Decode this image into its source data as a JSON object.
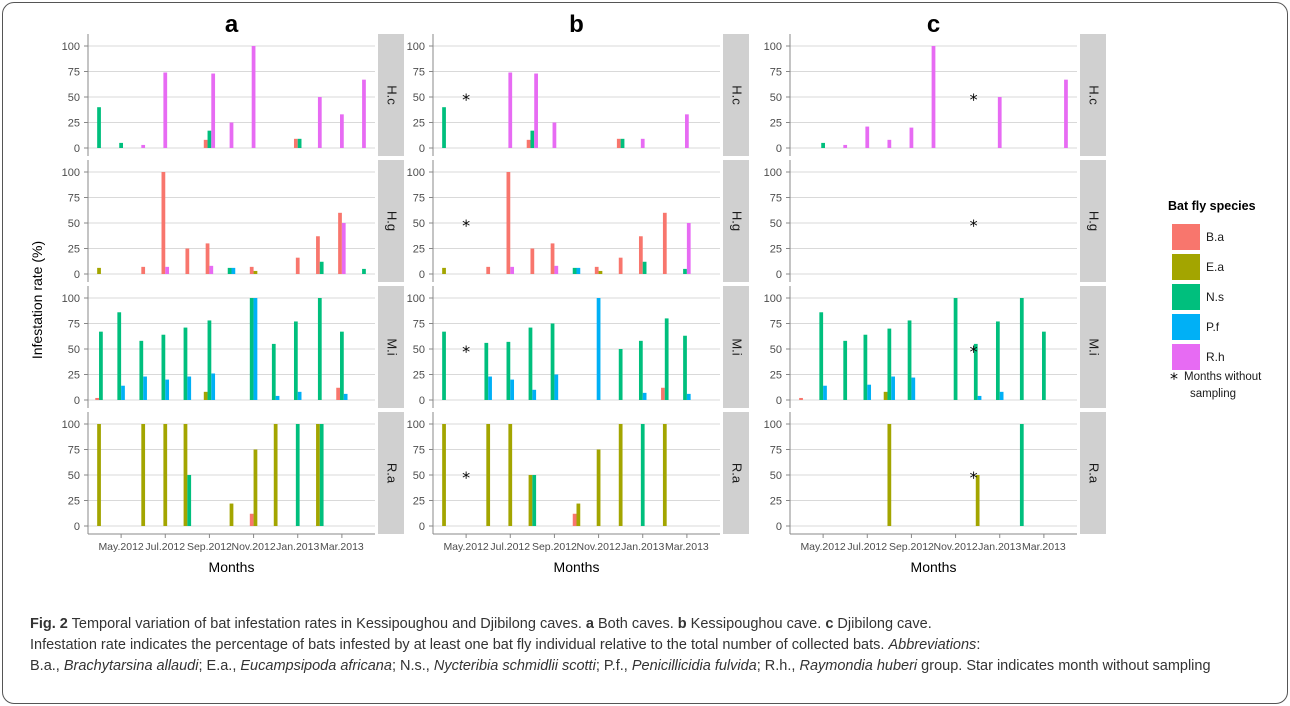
{
  "chart_data": {
    "type": "bar",
    "ylabel": "Infestation rate (%)",
    "xlabel": "Months",
    "months": [
      "2012-04",
      "2012-05",
      "2012-06",
      "2012-07",
      "2012-08",
      "2012-09",
      "2012-10",
      "2012-11",
      "2012-12",
      "2013-01",
      "2013-02",
      "2013-03",
      "2013-04"
    ],
    "month_tick_labels": [
      "May.2012",
      "Jul.2012",
      "Sep.2012",
      "Nov.2012",
      "Jan.2013",
      "Mar.2013"
    ],
    "ylim": [
      0,
      100
    ],
    "yticks": [
      0,
      25,
      50,
      75,
      100
    ],
    "grid": true,
    "facet_rows": [
      "H.c",
      "H.g",
      "M.i",
      "R.a"
    ],
    "series_names": [
      "B.a",
      "E.a",
      "N.s",
      "P.f",
      "R.h"
    ],
    "colors": {
      "B.a": "#F8766D",
      "E.a": "#A3A500",
      "N.s": "#00BF7D",
      "P.f": "#00B0F6",
      "R.h": "#E76BF3"
    },
    "legend": {
      "title": "Bat fly species",
      "position": "right",
      "items": [
        "B.a",
        "E.a",
        "N.s",
        "P.f",
        "R.h"
      ],
      "note_symbol": "*",
      "note_text": [
        "Months without",
        "sampling"
      ]
    },
    "panels": [
      {
        "label": "a",
        "no_sampling_month": null,
        "facets": {
          "H.c": {
            "B.a": [
              0,
              0,
              0,
              0,
              0,
              8,
              0,
              0,
              0,
              9,
              0,
              0,
              0
            ],
            "E.a": [
              0,
              0,
              0,
              0,
              0,
              0,
              0,
              0,
              0,
              0,
              0,
              0,
              0
            ],
            "N.s": [
              40,
              5,
              0,
              0,
              0,
              17,
              0,
              0,
              0,
              9,
              0,
              0,
              0
            ],
            "P.f": [
              0,
              0,
              0,
              0,
              0,
              0,
              0,
              0,
              0,
              0,
              0,
              0,
              0
            ],
            "R.h": [
              0,
              0,
              3,
              74,
              0,
              73,
              25,
              100,
              0,
              0,
              50,
              33,
              67
            ]
          },
          "H.g": {
            "B.a": [
              0,
              0,
              7,
              100,
              25,
              30,
              0,
              7,
              0,
              16,
              37,
              60,
              0
            ],
            "E.a": [
              6,
              0,
              0,
              0,
              0,
              0,
              0,
              3,
              0,
              0,
              0,
              0,
              0
            ],
            "N.s": [
              0,
              0,
              0,
              0,
              0,
              0,
              6,
              0,
              0,
              0,
              12,
              0,
              5
            ],
            "P.f": [
              0,
              0,
              0,
              0,
              0,
              0,
              6,
              0,
              0,
              0,
              0,
              0,
              0
            ],
            "R.h": [
              0,
              0,
              0,
              7,
              0,
              8,
              0,
              0,
              0,
              0,
              0,
              50,
              0
            ]
          },
          "M.i": {
            "B.a": [
              2,
              0,
              0,
              0,
              0,
              0,
              0,
              0,
              0,
              0,
              0,
              12,
              0
            ],
            "E.a": [
              0,
              0,
              0,
              0,
              0,
              8,
              0,
              0,
              0,
              0,
              0,
              0,
              0
            ],
            "N.s": [
              67,
              86,
              58,
              64,
              71,
              78,
              0,
              100,
              55,
              77,
              100,
              67,
              0
            ],
            "P.f": [
              0,
              14,
              23,
              20,
              23,
              26,
              0,
              100,
              4,
              8,
              0,
              6,
              0
            ],
            "R.h": [
              0,
              0,
              0,
              0,
              0,
              0,
              0,
              0,
              0,
              0,
              0,
              0,
              0
            ]
          },
          "R.a": {
            "B.a": [
              0,
              0,
              0,
              0,
              0,
              0,
              0,
              12,
              0,
              0,
              0,
              0,
              0
            ],
            "E.a": [
              100,
              0,
              100,
              100,
              100,
              0,
              22,
              75,
              100,
              0,
              100,
              0,
              0
            ],
            "N.s": [
              0,
              0,
              0,
              0,
              50,
              0,
              0,
              0,
              0,
              100,
              100,
              0,
              0
            ],
            "P.f": [
              0,
              0,
              0,
              0,
              0,
              0,
              0,
              0,
              0,
              0,
              0,
              0,
              0
            ],
            "R.h": [
              0,
              0,
              0,
              0,
              0,
              0,
              0,
              0,
              0,
              0,
              0,
              0,
              0
            ]
          }
        }
      },
      {
        "label": "b",
        "no_sampling_month": "2012-05",
        "facets": {
          "H.c": {
            "B.a": [
              0,
              0,
              0,
              0,
              8,
              0,
              0,
              0,
              9,
              0,
              0,
              0,
              0
            ],
            "E.a": [
              0,
              0,
              0,
              0,
              0,
              0,
              0,
              0,
              0,
              0,
              0,
              0,
              0
            ],
            "N.s": [
              40,
              0,
              0,
              0,
              17,
              0,
              0,
              0,
              9,
              0,
              0,
              0,
              0
            ],
            "P.f": [
              0,
              0,
              0,
              0,
              0,
              0,
              0,
              0,
              0,
              0,
              0,
              0,
              0
            ],
            "R.h": [
              0,
              0,
              0,
              74,
              73,
              25,
              0,
              0,
              0,
              9,
              0,
              33,
              0
            ]
          },
          "H.g": {
            "B.a": [
              0,
              0,
              7,
              100,
              25,
              30,
              0,
              7,
              16,
              37,
              60,
              0,
              0
            ],
            "E.a": [
              6,
              0,
              0,
              0,
              0,
              0,
              0,
              3,
              0,
              0,
              0,
              0,
              0
            ],
            "N.s": [
              0,
              0,
              0,
              0,
              0,
              0,
              6,
              0,
              0,
              12,
              0,
              5,
              0
            ],
            "P.f": [
              0,
              0,
              0,
              0,
              0,
              0,
              6,
              0,
              0,
              0,
              0,
              0,
              0
            ],
            "R.h": [
              0,
              0,
              0,
              7,
              0,
              8,
              0,
              0,
              0,
              0,
              0,
              50,
              0
            ]
          },
          "M.i": {
            "B.a": [
              0,
              0,
              0,
              0,
              0,
              0,
              0,
              0,
              0,
              0,
              12,
              0,
              0
            ],
            "E.a": [
              0,
              0,
              0,
              0,
              0,
              0,
              0,
              0,
              0,
              0,
              0,
              0,
              0
            ],
            "N.s": [
              67,
              0,
              56,
              57,
              71,
              75,
              0,
              0,
              50,
              58,
              80,
              63,
              0
            ],
            "P.f": [
              0,
              0,
              23,
              20,
              10,
              25,
              0,
              100,
              0,
              7,
              0,
              6,
              0
            ],
            "R.h": [
              0,
              0,
              0,
              0,
              0,
              0,
              0,
              0,
              0,
              0,
              0,
              0,
              0
            ]
          },
          "R.a": {
            "B.a": [
              0,
              0,
              0,
              0,
              0,
              0,
              12,
              0,
              0,
              0,
              0,
              0,
              0
            ],
            "E.a": [
              100,
              0,
              100,
              100,
              50,
              0,
              22,
              75,
              100,
              0,
              100,
              0,
              0
            ],
            "N.s": [
              0,
              0,
              0,
              0,
              50,
              0,
              0,
              0,
              0,
              100,
              0,
              0,
              0
            ],
            "P.f": [
              0,
              0,
              0,
              0,
              0,
              0,
              0,
              0,
              0,
              0,
              0,
              0,
              0
            ],
            "R.h": [
              0,
              0,
              0,
              0,
              0,
              0,
              0,
              0,
              0,
              0,
              0,
              0,
              0
            ]
          }
        }
      },
      {
        "label": "c",
        "no_sampling_month": "2012-11",
        "facets": {
          "H.c": {
            "B.a": [
              0,
              0,
              0,
              0,
              0,
              0,
              0,
              0,
              0,
              0,
              0,
              0,
              0
            ],
            "E.a": [
              0,
              0,
              0,
              0,
              0,
              0,
              0,
              0,
              0,
              0,
              0,
              0,
              0
            ],
            "N.s": [
              0,
              5,
              0,
              0,
              0,
              0,
              0,
              0,
              0,
              0,
              0,
              0,
              0
            ],
            "P.f": [
              0,
              0,
              0,
              0,
              0,
              0,
              0,
              0,
              0,
              0,
              0,
              0,
              0
            ],
            "R.h": [
              0,
              0,
              3,
              21,
              8,
              20,
              100,
              0,
              0,
              50,
              0,
              0,
              67
            ]
          },
          "H.g": {
            "B.a": [
              0,
              0,
              0,
              0,
              0,
              0,
              0,
              0,
              0,
              0,
              0,
              0,
              0
            ],
            "E.a": [
              0,
              0,
              0,
              0,
              0,
              0,
              0,
              0,
              0,
              0,
              0,
              0,
              0
            ],
            "N.s": [
              0,
              0,
              0,
              0,
              0,
              0,
              0,
              0,
              0,
              0,
              0,
              0,
              0
            ],
            "P.f": [
              0,
              0,
              0,
              0,
              0,
              0,
              0,
              0,
              0,
              0,
              0,
              0,
              0
            ],
            "R.h": [
              0,
              0,
              0,
              0,
              0,
              0,
              0,
              0,
              0,
              0,
              0,
              0,
              0
            ]
          },
          "M.i": {
            "B.a": [
              2,
              0,
              0,
              0,
              0,
              0,
              0,
              0,
              0,
              0,
              0,
              0,
              0
            ],
            "E.a": [
              0,
              0,
              0,
              0,
              8,
              0,
              0,
              0,
              0,
              0,
              0,
              0,
              0
            ],
            "N.s": [
              0,
              86,
              58,
              64,
              70,
              78,
              0,
              100,
              55,
              77,
              100,
              67,
              0
            ],
            "P.f": [
              0,
              14,
              0,
              15,
              23,
              22,
              0,
              0,
              4,
              8,
              0,
              0,
              0
            ],
            "R.h": [
              0,
              0,
              0,
              0,
              0,
              0,
              0,
              0,
              0,
              0,
              0,
              0,
              0
            ]
          },
          "R.a": {
            "B.a": [
              0,
              0,
              0,
              0,
              0,
              0,
              0,
              0,
              0,
              0,
              0,
              0,
              0
            ],
            "E.a": [
              0,
              0,
              0,
              0,
              100,
              0,
              0,
              0,
              50,
              0,
              0,
              0,
              0
            ],
            "N.s": [
              0,
              0,
              0,
              0,
              0,
              0,
              0,
              0,
              0,
              0,
              100,
              0,
              0
            ],
            "P.f": [
              0,
              0,
              0,
              0,
              0,
              0,
              0,
              0,
              0,
              0,
              0,
              0,
              0
            ],
            "R.h": [
              0,
              0,
              0,
              0,
              0,
              0,
              0,
              0,
              0,
              0,
              0,
              0,
              0
            ]
          }
        }
      }
    ]
  },
  "caption": {
    "fig_label": "Fig. 2",
    "text_1": " Temporal variation of bat infestation rates in Kessipoughou and Djibilong caves. ",
    "a_label": "a",
    "a_text": " Both caves. ",
    "b_label": "b",
    "b_text": " Kessipoughou cave. ",
    "c_label": "c",
    "c_text": " Djibilong cave.",
    "line2": "Infestation rate indicates the percentage of bats infested by at least one bat fly individual relative to the total number of collected bats. ",
    "abbr_label": "Abbreviations",
    "abbr_sep": ":",
    "ba": " B.a., ",
    "ba_name": "Brachytarsina allaudi",
    "ea": "; E.a., ",
    "ea_name": "Eucampsipoda africana",
    "ns": "; N.s., ",
    "ns_name": "Nycteribia schmidlii scotti",
    "pf": "; P.f., ",
    "pf_name": "Penicillicidia fulvida",
    "rh": "; R.h., ",
    "rh_name": "Raymondia huberi",
    "tail": " group. Star indicates month without sampling"
  }
}
